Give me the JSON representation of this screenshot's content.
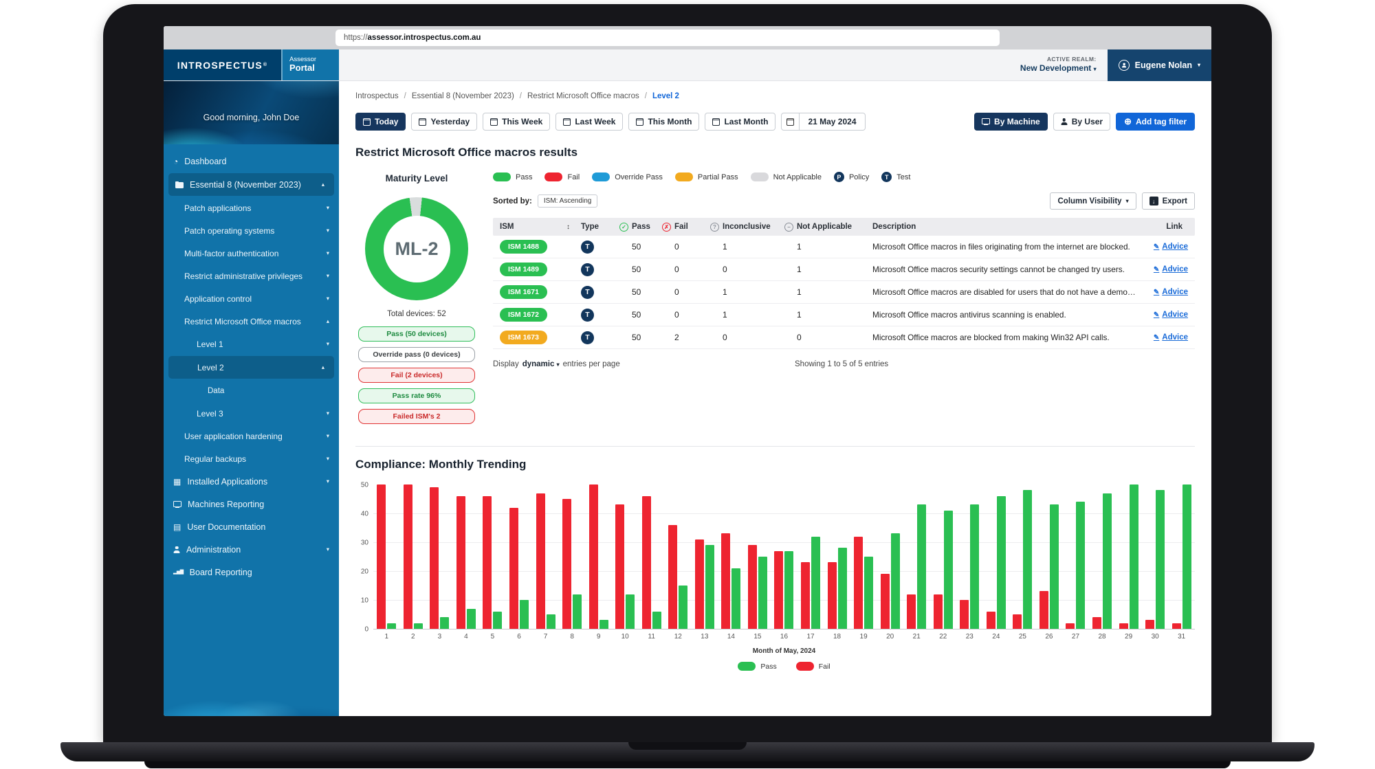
{
  "colors": {
    "navy": "#16365e",
    "accent_blue": "#1166d8",
    "sidebar_blue": "#1173a9",
    "green": "#2abf52",
    "red": "#ee2430",
    "orange": "#f2aa1f",
    "override_blue": "#1f9bd7",
    "na_gray": "#d9d9dc"
  },
  "icons": {
    "dashboard": "◔",
    "installed-applications": "▦",
    "user-documentation": "▤",
    "board-reporting": "▂▅▇",
    "sort": "↕",
    "plus": "⊕",
    "chevron_down": "▾",
    "chevron_up": "▴",
    "check": "✓",
    "cross": "✗",
    "question": "?",
    "dash": "−",
    "edit": "✎",
    "export_arrow": "↓"
  },
  "browser": {
    "url_scheme": "https://",
    "url_domain": "assessor.introspectus.com.au"
  },
  "header": {
    "brand": "INTROSPECTUS",
    "brand_reg": "®",
    "portal_line1": "Assessor",
    "portal_line2": "Portal",
    "active_realm_label": "ACTIVE REALM:",
    "active_realm_value": "New Development",
    "user_name": "Eugene Nolan"
  },
  "sidebar": {
    "greeting": "Good morning, John Doe",
    "items": [
      {
        "label": "Dashboard",
        "icon": "dashboard",
        "level": 0
      },
      {
        "label": "Essential 8 (November 2023)",
        "icon": "folder",
        "level": 0,
        "chevron": "up",
        "active": true
      },
      {
        "label": "Patch applications",
        "level": 1,
        "chevron": "down"
      },
      {
        "label": "Patch operating systems",
        "level": 1,
        "chevron": "down"
      },
      {
        "label": "Multi-factor authentication",
        "level": 1,
        "chevron": "down"
      },
      {
        "label": "Restrict administrative privileges",
        "level": 1,
        "chevron": "down"
      },
      {
        "label": "Application control",
        "level": 1,
        "chevron": "down"
      },
      {
        "label": "Restrict Microsoft Office macros",
        "level": 1,
        "chevron": "up"
      },
      {
        "label": "Level 1",
        "level": 2,
        "chevron": "down"
      },
      {
        "label": "Level 2",
        "level": 2,
        "chevron": "up",
        "active": true
      },
      {
        "label": "Data",
        "level": 3
      },
      {
        "label": "Level 3",
        "level": 2,
        "chevron": "down"
      },
      {
        "label": "User application hardening",
        "level": 1,
        "chevron": "down"
      },
      {
        "label": "Regular backups",
        "level": 1,
        "chevron": "down"
      },
      {
        "label": "Installed Applications",
        "icon": "installed-applications",
        "level": 0,
        "chevron": "down"
      },
      {
        "label": "Machines Reporting",
        "icon": "monitor",
        "level": 0
      },
      {
        "label": "User Documentation",
        "icon": "user-documentation",
        "level": 0
      },
      {
        "label": "Administration",
        "icon": "person",
        "level": 0,
        "chevron": "down"
      },
      {
        "label": "Board Reporting",
        "icon": "board-reporting",
        "level": 0
      }
    ]
  },
  "breadcrumb": [
    "Introspectus",
    "Essential 8 (November 2023)",
    "Restrict Microsoft Office macros",
    "Level 2"
  ],
  "filters": {
    "date_buttons": [
      {
        "label": "Today",
        "active": true
      },
      {
        "label": "Yesterday",
        "active": false
      },
      {
        "label": "This Week",
        "active": false
      },
      {
        "label": "Last Week",
        "active": false
      },
      {
        "label": "This Month",
        "active": false
      },
      {
        "label": "Last Month",
        "active": false
      }
    ],
    "date_display": "21 May 2024",
    "view_buttons": [
      {
        "label": "By Machine",
        "icon": "monitor",
        "active": true
      },
      {
        "label": "By User",
        "icon": "person",
        "active": false
      }
    ],
    "add_tag_label": "Add tag filter"
  },
  "results": {
    "title": "Restrict Microsoft Office macros results",
    "maturity": {
      "heading": "Maturity Level",
      "level_label": "ML-2",
      "pass_percent": 96,
      "total_label": "Total devices: 52",
      "badges": [
        {
          "text": "Pass (50 devices)",
          "type": "green"
        },
        {
          "text": "Override pass (0 devices)",
          "type": "gray"
        },
        {
          "text": "Fail (2 devices)",
          "type": "red"
        },
        {
          "text": "Pass rate 96%",
          "type": "green"
        },
        {
          "text": "Failed ISM's 2",
          "type": "red"
        }
      ]
    },
    "legend": [
      {
        "label": "Pass",
        "swatch": "#2abf52"
      },
      {
        "label": "Fail",
        "swatch": "#ee2430"
      },
      {
        "label": "Override Pass",
        "swatch": "#1f9bd7"
      },
      {
        "label": "Partial Pass",
        "swatch": "#f2aa1f"
      },
      {
        "label": "Not Applicable",
        "swatch": "#d9d9dc"
      },
      {
        "label": "Policy",
        "letter": "P"
      },
      {
        "label": "Test",
        "letter": "T"
      }
    ],
    "sorted_by_label": "Sorted by:",
    "sorted_by_value": "ISM: Ascending",
    "column_visibility_label": "Column Visibility",
    "export_label": "Export",
    "table": {
      "columns": [
        "ISM",
        "Type",
        "Pass",
        "Fail",
        "Inconclusive",
        "Not Applicable",
        "Description",
        "Link"
      ],
      "rows": [
        {
          "ism": "ISM 1488",
          "status": "pass",
          "type": "T",
          "pass": 50,
          "fail": 0,
          "inconclusive": 1,
          "not_applicable": 1,
          "description": "Microsoft Office macros in files originating from the internet are blocked.",
          "link": "Advice"
        },
        {
          "ism": "ISM 1489",
          "status": "pass",
          "type": "T",
          "pass": 50,
          "fail": 0,
          "inconclusive": 0,
          "not_applicable": 1,
          "description": "Microsoft Office macros security settings cannot be changed try users.",
          "link": "Advice"
        },
        {
          "ism": "ISM 1671",
          "status": "pass",
          "type": "T",
          "pass": 50,
          "fail": 0,
          "inconclusive": 1,
          "not_applicable": 1,
          "description": "Microsoft Office macros are disabled for users that do not have a demonstrated...",
          "link": "Advice"
        },
        {
          "ism": "ISM 1672",
          "status": "pass",
          "type": "T",
          "pass": 50,
          "fail": 0,
          "inconclusive": 1,
          "not_applicable": 1,
          "description": "Microsoft Office macros antivirus scanning is enabled.",
          "link": "Advice"
        },
        {
          "ism": "ISM 1673",
          "status": "partial",
          "type": "T",
          "pass": 50,
          "fail": 2,
          "inconclusive": 0,
          "not_applicable": 0,
          "description": "Microsoft Office macros are blocked from making Win32 API calls.",
          "link": "Advice"
        }
      ]
    },
    "footer": {
      "display_label": "Display",
      "display_value": "dynamic",
      "entries_label": "entries per page",
      "showing": "Showing 1 to 5 of 5 entries"
    }
  },
  "trending": {
    "title": "Compliance: Monthly Trending",
    "xlabel": "Month of May, 2024",
    "legend": [
      {
        "label": "Pass",
        "color": "#2abf52"
      },
      {
        "label": "Fail",
        "color": "#ee2430"
      }
    ]
  },
  "chart_data": [
    {
      "type": "bar",
      "title": "Compliance: Monthly Trending",
      "x": [
        1,
        2,
        3,
        4,
        5,
        6,
        7,
        8,
        9,
        10,
        11,
        12,
        13,
        14,
        15,
        16,
        17,
        18,
        19,
        20,
        21,
        22,
        23,
        24,
        25,
        26,
        27,
        28,
        29,
        30,
        31
      ],
      "series": [
        {
          "name": "Fail",
          "color": "#ee2430",
          "values": [
            50,
            50,
            49,
            46,
            46,
            42,
            47,
            45,
            50,
            43,
            46,
            36,
            31,
            33,
            29,
            27,
            23,
            23,
            32,
            19,
            12,
            12,
            10,
            6,
            5,
            13,
            2,
            4,
            2,
            3,
            2
          ]
        },
        {
          "name": "Pass",
          "color": "#2abf52",
          "values": [
            2,
            2,
            4,
            7,
            6,
            10,
            5,
            12,
            3,
            12,
            6,
            15,
            29,
            21,
            25,
            27,
            32,
            28,
            25,
            33,
            43,
            41,
            43,
            46,
            48,
            43,
            44,
            47,
            50,
            48,
            50
          ]
        }
      ],
      "ylim": [
        0,
        50
      ],
      "yticks": [
        0,
        10,
        20,
        30,
        40,
        50
      ],
      "xlabel": "Month of May, 2024",
      "grid": true,
      "legend_position": "bottom"
    },
    {
      "type": "donut",
      "title": "Maturity Level",
      "center_label": "ML-2",
      "slices": [
        {
          "label": "Pass",
          "value": 96,
          "color": "#2abf52"
        },
        {
          "label": "Other",
          "value": 4,
          "color": "#d9dddd"
        }
      ]
    }
  ]
}
